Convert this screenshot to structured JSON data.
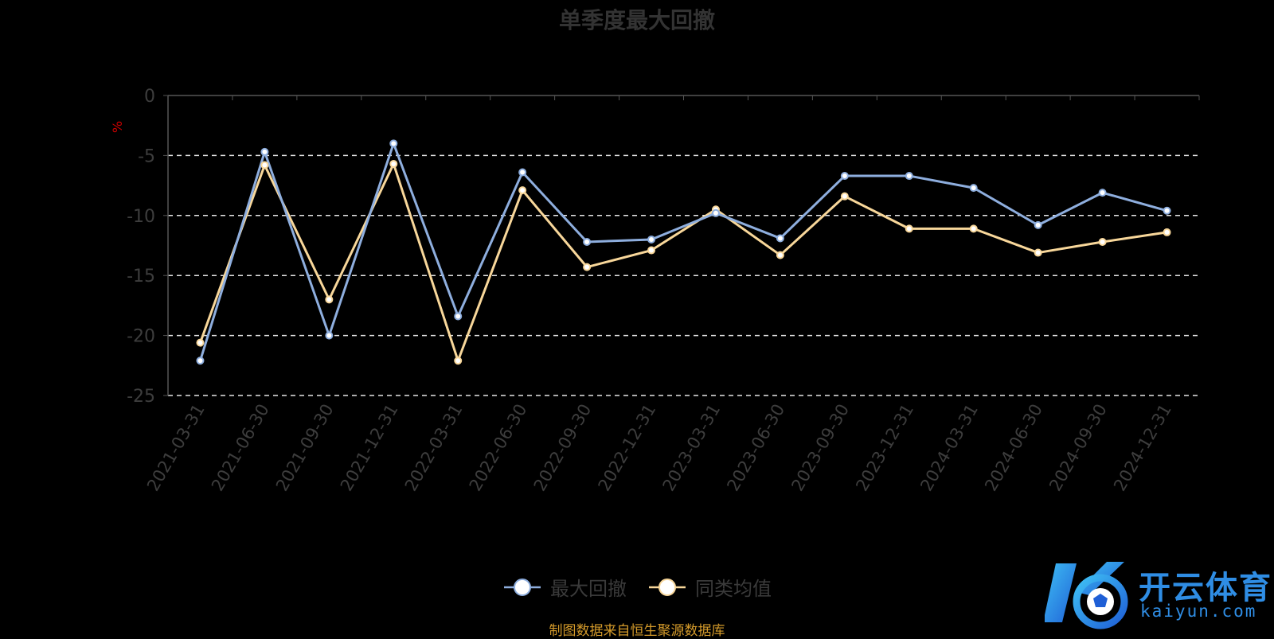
{
  "chart_data": {
    "type": "line",
    "title": "单季度最大回撤",
    "ylabel": "%",
    "ylim": [
      -25,
      0
    ],
    "yticks": [
      "0",
      "-5",
      "-10",
      "-15",
      "-20",
      "-25"
    ],
    "grid": "dashed horizontal",
    "legend_position": "bottom-center",
    "categories": [
      "2021-03-31",
      "2021-06-30",
      "2021-09-30",
      "2021-12-31",
      "2022-03-31",
      "2022-06-30",
      "2022-09-30",
      "2022-12-31",
      "2023-03-31",
      "2023-06-30",
      "2023-09-30",
      "2023-12-31",
      "2024-03-31",
      "2024-06-30",
      "2024-09-30",
      "2024-12-31"
    ],
    "series": [
      {
        "name": "最大回撤",
        "color": "#8eaede",
        "values": [
          -22.1,
          -4.7,
          -20.0,
          -4.0,
          -18.4,
          -6.4,
          -12.2,
          -12.0,
          -9.8,
          -11.9,
          -6.7,
          -6.7,
          -7.7,
          -10.8,
          -8.1,
          -9.6
        ]
      },
      {
        "name": "同类均值",
        "color": "#f8d79a",
        "values": [
          -20.6,
          -5.8,
          -17.0,
          -5.7,
          -22.1,
          -7.9,
          -14.3,
          -12.9,
          -9.5,
          -13.3,
          -8.4,
          -11.1,
          -11.1,
          -13.1,
          -12.2,
          -11.4
        ]
      }
    ]
  },
  "footer": {
    "source": "制图数据来自恒生聚源数据库"
  },
  "watermark": {
    "brand": "开云体育",
    "domain": "kaiyun.com",
    "icon": "kaiyun-logo-icon"
  }
}
